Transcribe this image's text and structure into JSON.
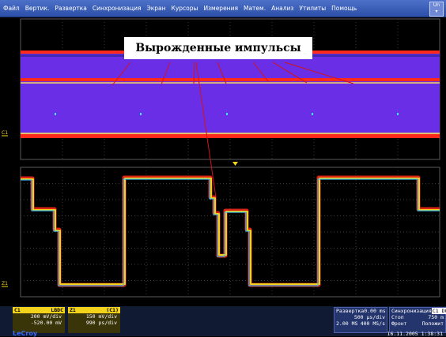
{
  "menu": [
    "Файл",
    "Вертик.",
    "Развертка",
    "Синхронизация",
    "Экран",
    "Курсоры",
    "Измерения",
    "Матем.",
    "Анализ",
    "Утилиты",
    "Помощь"
  ],
  "undo": {
    "line1": "Un",
    "line2": "▾"
  },
  "annotation": "Вырожденные импульсы",
  "channel_markers": {
    "c1": "C1",
    "z1": "Z1"
  },
  "ch1": {
    "header_label": "C1",
    "header_tag": "LBDC",
    "header_value": "200 mV/div",
    "offset": "-520.00 mV",
    "color": "#f2d21b"
  },
  "z1": {
    "header_label": "Z1",
    "header_tag": "(C1)",
    "header_value": "150 mV/div",
    "time": "990 ps/div",
    "color": "#f2d21b"
  },
  "timebase": {
    "label": "Развертка",
    "value1": "0.00 ms",
    "value2": "500 µs/div",
    "left2": "2.00 MS",
    "right2": "400 MS/s"
  },
  "trigger": {
    "label": "Синхронизация",
    "tag": "C1 DC",
    "row1_l": "Стоп",
    "row1_r": "750 m",
    "row2_l": "Фронт",
    "row2_r": "Положит"
  },
  "brand": "LeCroy",
  "timestamp": "16.11.2005 1:38:31",
  "colors": {
    "menubar": "#3554b5",
    "upper_fill": "#6a2ee6",
    "accent_red": "#ff2a1a",
    "trace_yellow": "#f2d21b"
  }
}
